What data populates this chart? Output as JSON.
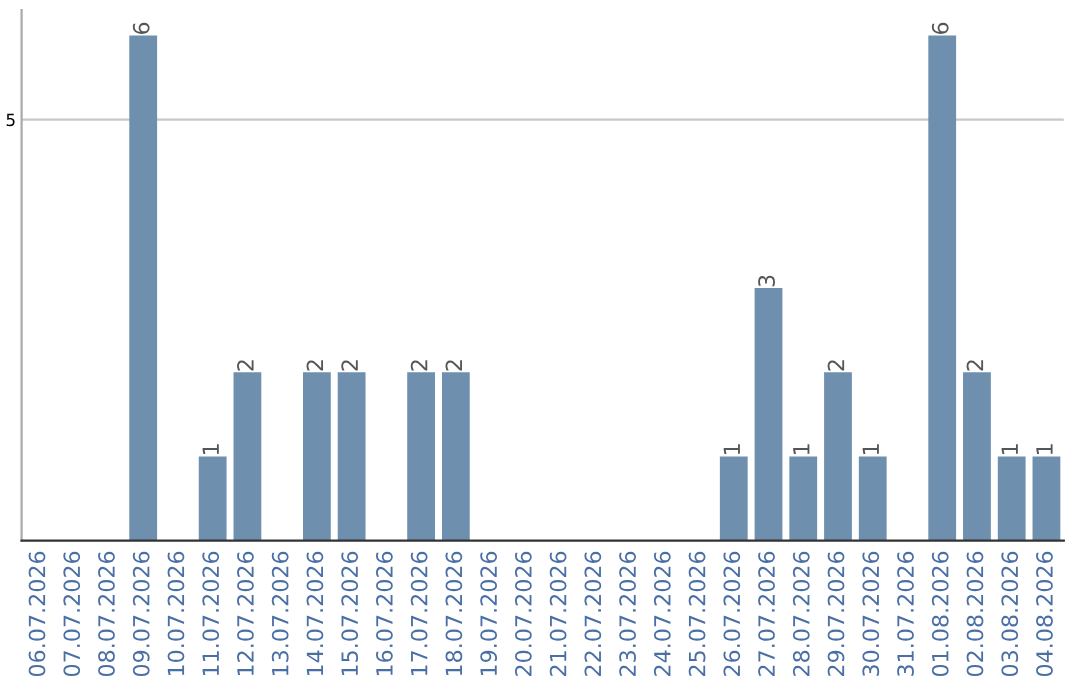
{
  "chart_data": {
    "type": "bar",
    "categories": [
      "06.07.2026",
      "07.07.2026",
      "08.07.2026",
      "09.07.2026",
      "10.07.2026",
      "11.07.2026",
      "12.07.2026",
      "13.07.2026",
      "14.07.2026",
      "15.07.2026",
      "16.07.2026",
      "17.07.2026",
      "18.07.2026",
      "19.07.2026",
      "20.07.2026",
      "21.07.2026",
      "22.07.2026",
      "23.07.2026",
      "24.07.2026",
      "25.07.2026",
      "26.07.2026",
      "27.07.2026",
      "28.07.2026",
      "29.07.2026",
      "30.07.2026",
      "31.07.2026",
      "01.08.2026",
      "02.08.2026",
      "03.08.2026",
      "04.08.2026"
    ],
    "values": [
      0,
      0,
      0,
      6,
      0,
      1,
      2,
      0,
      2,
      2,
      0,
      2,
      2,
      0,
      0,
      0,
      0,
      0,
      0,
      0,
      1,
      3,
      1,
      2,
      1,
      0,
      6,
      2,
      1,
      1
    ],
    "value_labels": [
      null,
      null,
      null,
      "6",
      null,
      "1",
      "2",
      null,
      "2",
      "2",
      null,
      "2",
      "2",
      null,
      null,
      null,
      null,
      null,
      null,
      null,
      "1",
      "3",
      "1",
      "2",
      "1",
      null,
      "6",
      "2",
      "1",
      "1"
    ],
    "color": "#6e8fae",
    "ylim": [
      0,
      6.3
    ],
    "yticks": [
      5
    ],
    "grid": "y"
  }
}
